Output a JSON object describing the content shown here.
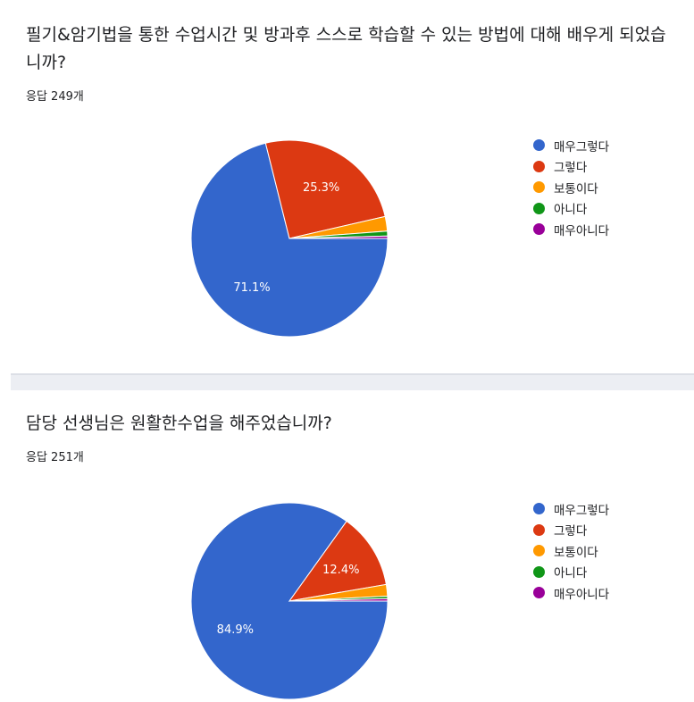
{
  "questions": [
    {
      "title": "필기&암기법을 통한 수업시간 및 방과후 스스로 학습할 수 있는 방법에 대해 배우게 되었습니까?",
      "response_count": "응답 249개"
    },
    {
      "title": "담당 선생님은 원활한수업을 해주었습니까?",
      "response_count": "응답 251개"
    }
  ],
  "chart_data": [
    {
      "type": "pie",
      "categories": [
        "매우그렇다",
        "그렇다",
        "보통이다",
        "아니다",
        "매우아니다"
      ],
      "values": [
        71.1,
        25.3,
        2.4,
        0.8,
        0.4
      ],
      "labels": [
        "71.1%",
        "25.3%",
        "",
        "",
        ""
      ],
      "colors": [
        "#3366cc",
        "#dc3912",
        "#ff9900",
        "#109618",
        "#990099"
      ],
      "legend": "right"
    },
    {
      "type": "pie",
      "categories": [
        "매우그렇다",
        "그렇다",
        "보통이다",
        "아니다",
        "매우아니다"
      ],
      "values": [
        84.9,
        12.4,
        1.9,
        0.4,
        0.4
      ],
      "labels": [
        "84.9%",
        "12.4%",
        "",
        "",
        ""
      ],
      "colors": [
        "#3366cc",
        "#dc3912",
        "#ff9900",
        "#109618",
        "#990099"
      ],
      "legend": "right"
    }
  ]
}
